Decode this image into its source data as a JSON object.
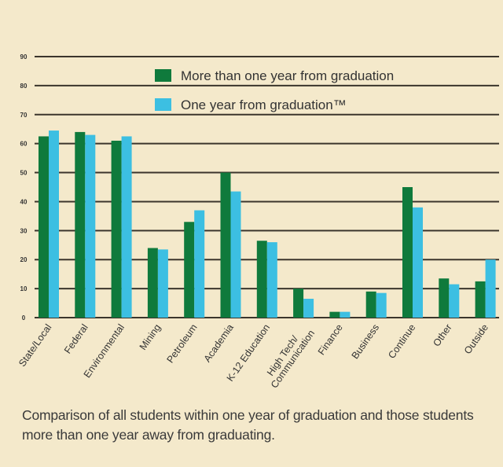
{
  "chart_data": {
    "type": "bar",
    "title": "",
    "xlabel": "",
    "ylabel": "",
    "ylim": [
      0,
      90
    ],
    "yticks": [
      0,
      10,
      20,
      30,
      40,
      50,
      60,
      70,
      80,
      90
    ],
    "grid": true,
    "legend_position": "top-right",
    "categories": [
      "State/Local",
      "Federal",
      "Environmental",
      "Mining",
      "Petroleum",
      "Academia",
      "K-12 Education",
      "High Tech/ Communication",
      "Finance",
      "Business",
      "Continue",
      "Other",
      "Outside"
    ],
    "series": [
      {
        "name": "More than one year from graduation",
        "color": "#0f7a3c",
        "values": [
          62.5,
          64,
          61,
          24,
          33,
          50,
          26.5,
          10,
          2,
          9,
          45,
          13.5,
          12.5
        ]
      },
      {
        "name": "One year from graduation™",
        "color": "#3cbfe2",
        "values": [
          64.5,
          63,
          62.5,
          23.5,
          37,
          43.5,
          26,
          6.5,
          2,
          8.5,
          38,
          11.5,
          20
        ]
      }
    ]
  },
  "caption": "Comparison of all students within one year of graduation and those students more than one year away from graduating."
}
